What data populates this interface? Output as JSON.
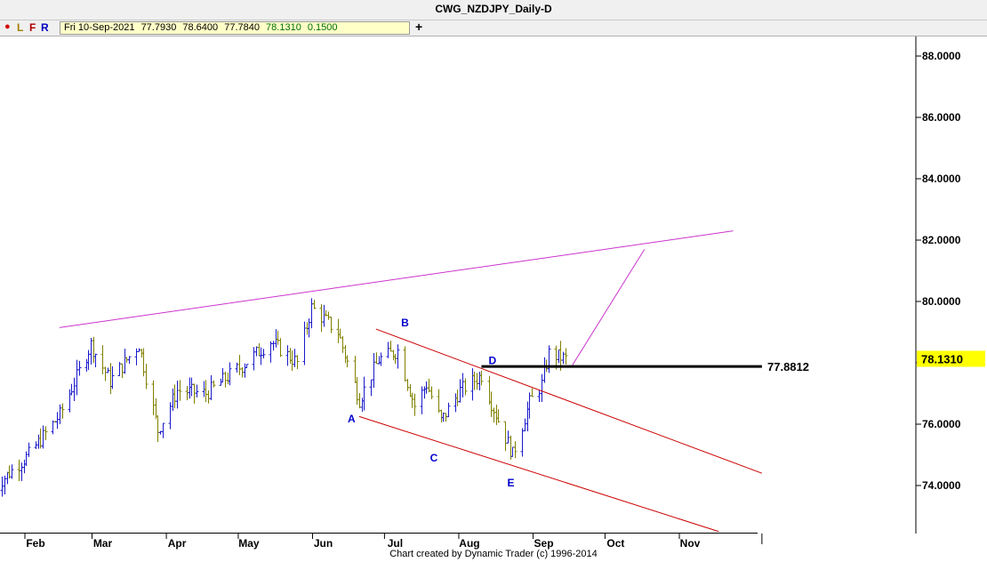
{
  "window": {
    "title": "CWG_NZDJPY_Daily-D"
  },
  "toolbar": {
    "dot": "●",
    "letters": [
      "L",
      "F",
      "R"
    ],
    "ohlc": {
      "date": "Fri 10-Sep-2021",
      "open": "77.7930",
      "high": "78.6400",
      "low": "77.7840",
      "close": "78.1310",
      "change": "0.1500"
    },
    "add_label": "+"
  },
  "footer": {
    "credit": "Chart created by Dynamic Trader  (c)  1996-2014"
  },
  "colors": {
    "bar_up": "#1a1acc",
    "bar_down": "#808000",
    "trendline": "#cc33cc",
    "channel": "#cc0000",
    "level_line": "#000000",
    "wave_label": "#0000cc",
    "price_tag": "#ffff00"
  },
  "chart_data": {
    "type": "ohlc",
    "symbol": "CWG_NZDJPY",
    "timeframe": "Daily",
    "x_labels": [
      "Feb",
      "Mar",
      "Apr",
      "May",
      "Jun",
      "Jul",
      "Aug",
      "Sep",
      "Oct",
      "Nov"
    ],
    "y_ticks": [
      "74.0000",
      "76.0000",
      "78.0000",
      "80.0000",
      "82.0000",
      "84.0000",
      "86.0000",
      "88.0000"
    ],
    "ylim": [
      72.4,
      89.0
    ],
    "last_price": "78.1310",
    "level": {
      "label": "77.8812",
      "value": 77.8812
    },
    "wave_labels": [
      {
        "text": "A",
        "date": "2021-06-16",
        "price": 76.35
      },
      {
        "text": "B",
        "date": "2021-07-02",
        "price": 78.95
      },
      {
        "text": "C",
        "date": "2021-07-20",
        "price": 75.25
      },
      {
        "text": "D",
        "date": "2021-08-06",
        "price": 77.9
      },
      {
        "text": "E",
        "date": "2021-08-19",
        "price": 74.55
      }
    ],
    "trendlines": [
      {
        "name": "upper",
        "from": [
          "2021-02-11",
          79.15
        ],
        "to": [
          "2021-11-19",
          82.3
        ]
      },
      {
        "name": "projection",
        "from": [
          "2021-09-13",
          77.93
        ],
        "to": [
          "2021-10-13",
          81.7
        ]
      },
      {
        "name": "channel-top",
        "from": [
          "2021-06-23",
          79.1
        ],
        "to": [
          "2021-12-01",
          74.4
        ]
      },
      {
        "name": "channel-bottom",
        "from": [
          "2021-06-16",
          76.25
        ],
        "to": [
          "2021-11-13",
          72.5
        ]
      },
      {
        "name": "level",
        "from": [
          "2021-08-06",
          77.8812
        ],
        "to": [
          "2021-12-01",
          77.8812
        ]
      }
    ],
    "anchors": [
      {
        "date": "2021-01-14",
        "price": 73.9
      },
      {
        "date": "2021-01-29",
        "price": 75.0
      },
      {
        "date": "2021-02-11",
        "price": 76.3
      },
      {
        "date": "2021-02-24",
        "price": 78.6
      },
      {
        "date": "2021-03-04",
        "price": 77.4
      },
      {
        "date": "2021-03-16",
        "price": 78.6
      },
      {
        "date": "2021-03-24",
        "price": 75.8
      },
      {
        "date": "2021-04-01",
        "price": 77.1
      },
      {
        "date": "2021-04-13",
        "price": 77.0
      },
      {
        "date": "2021-04-28",
        "price": 77.9
      },
      {
        "date": "2021-05-10",
        "price": 78.7
      },
      {
        "date": "2021-05-21",
        "price": 78.0
      },
      {
        "date": "2021-05-27",
        "price": 79.8
      },
      {
        "date": "2021-06-07",
        "price": 79.0
      },
      {
        "date": "2021-06-16",
        "price": 76.8
      },
      {
        "date": "2021-06-24",
        "price": 78.1
      },
      {
        "date": "2021-07-02",
        "price": 78.4
      },
      {
        "date": "2021-07-09",
        "price": 76.6
      },
      {
        "date": "2021-07-14",
        "price": 77.3
      },
      {
        "date": "2021-07-20",
        "price": 76.1
      },
      {
        "date": "2021-07-28",
        "price": 77.1
      },
      {
        "date": "2021-08-06",
        "price": 77.6
      },
      {
        "date": "2021-08-10",
        "price": 76.7
      },
      {
        "date": "2021-08-19",
        "price": 75.0
      },
      {
        "date": "2021-08-26",
        "price": 76.7
      },
      {
        "date": "2021-08-31",
        "price": 77.3
      },
      {
        "date": "2021-09-03",
        "price": 78.3
      },
      {
        "date": "2021-09-10",
        "price": 78.13
      }
    ]
  }
}
